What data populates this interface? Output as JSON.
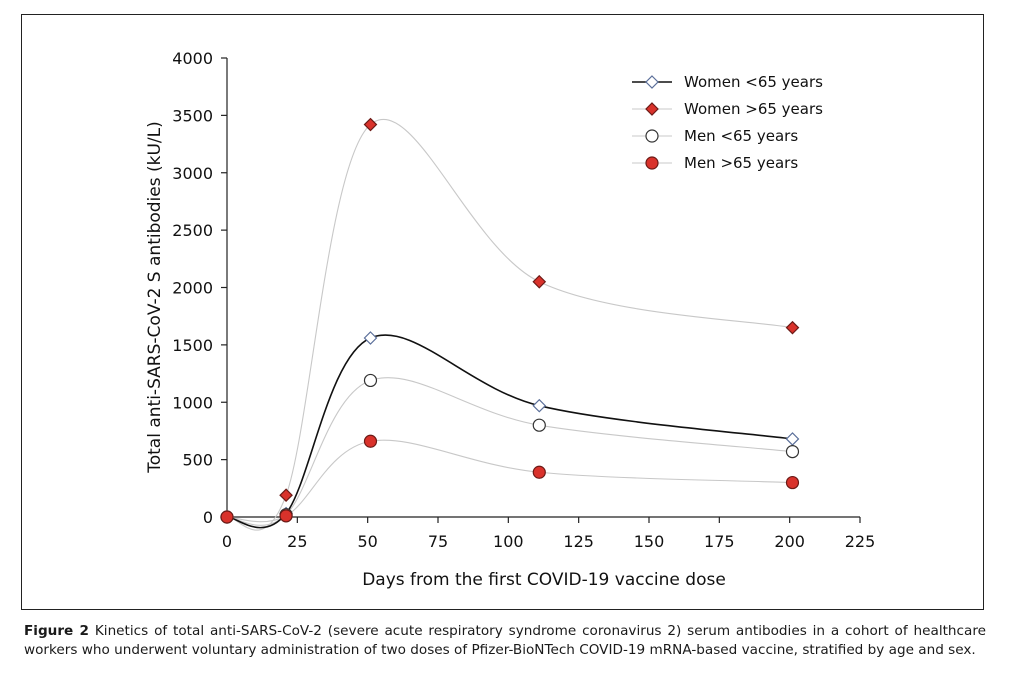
{
  "figure": {
    "label": "Figure 2",
    "caption": "Kinetics of total anti-SARS-CoV-2 (severe acute respiratory syndrome coronavirus 2) serum antibodies in a cohort of healthcare workers who underwent voluntary administration of two doses of Pfizer-BioNTech COVID-19 mRNA-based vaccine, stratified by age and sex."
  },
  "chart_data": {
    "type": "line",
    "xlabel": "Days from the first COVID-19 vaccine dose",
    "ylabel": "Total anti-SARS-CoV-2 S antibodies (kU/L)",
    "xlim": [
      0,
      225
    ],
    "ylim": [
      0,
      4000
    ],
    "xticks": [
      0,
      25,
      50,
      75,
      100,
      125,
      150,
      175,
      200,
      225
    ],
    "yticks": [
      0,
      500,
      1000,
      1500,
      2000,
      2500,
      3000,
      3500,
      4000
    ],
    "grid": false,
    "legend_position": "top-right",
    "x": [
      0,
      21,
      51,
      111,
      201
    ],
    "series": [
      {
        "name": "Women <65 years",
        "marker": "diamond-open",
        "line_color": "#111111",
        "marker_fill": "#ffffff",
        "marker_stroke": "#5b6f9a",
        "values": [
          0,
          30,
          1560,
          970,
          680
        ]
      },
      {
        "name": "Women >65 years",
        "marker": "diamond-filled",
        "line_color": "#c8c8c8",
        "marker_fill": "#d9322b",
        "marker_stroke": "#6b1a16",
        "values": [
          0,
          190,
          3420,
          2050,
          1650
        ]
      },
      {
        "name": "Men <65 years",
        "marker": "circle-open",
        "line_color": "#c8c8c8",
        "marker_fill": "#ffffff",
        "marker_stroke": "#333333",
        "values": [
          0,
          20,
          1190,
          800,
          570
        ]
      },
      {
        "name": "Men >65 years",
        "marker": "circle-filled",
        "line_color": "#c8c8c8",
        "marker_fill": "#d9322b",
        "marker_stroke": "#6b1a16",
        "values": [
          0,
          10,
          660,
          390,
          300
        ]
      }
    ]
  }
}
